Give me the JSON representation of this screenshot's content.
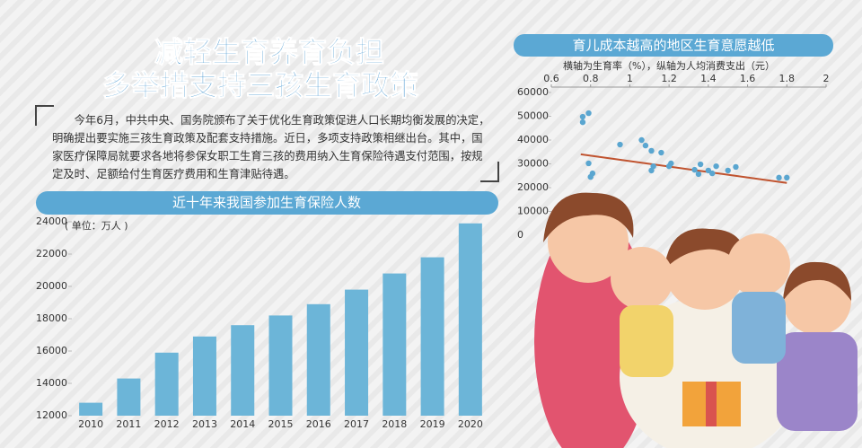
{
  "header": {
    "title_lines": [
      "减轻生育养育负担",
      "多举措支持三孩生育政策"
    ],
    "body": "今年6月，中共中央、国务院颁布了关于优化生育政策促进人口长期均衡发展的决定，明确提出要实施三孩生育政策及配套支持措施。近日，多项支持政策相继出台。其中，国家医疗保障局就要求各地将参保女职工生育三孩的费用纳入生育保险待遇支付范围，按规定及时、足额给付生育医疗费用和生育津贴待遇。"
  },
  "chart_data": [
    {
      "type": "bar",
      "title": "近十年来我国参加生育保险人数",
      "unit": "( 单位：万人 )",
      "categories": [
        "2010",
        "2011",
        "2012",
        "2013",
        "2014",
        "2015",
        "2016",
        "2017",
        "2018",
        "2019",
        "2020"
      ],
      "values": [
        12800,
        14300,
        15900,
        16900,
        17600,
        18200,
        18900,
        19800,
        20800,
        21800,
        23900
      ],
      "color": "#6cb5d8",
      "ylim": [
        12000,
        24000
      ],
      "yticks": [
        12000,
        14000,
        16000,
        18000,
        20000,
        22000,
        24000
      ]
    },
    {
      "type": "scatter",
      "title": "育儿成本越高的地区生育意愿越低",
      "subtitle": "横轴为生育率（%），纵轴为人均消费支出（元）",
      "x": [
        0.76,
        0.79,
        0.76,
        0.79,
        0.81,
        0.8,
        0.95,
        1.06,
        1.08,
        1.11,
        1.12,
        1.11,
        1.16,
        1.2,
        1.21,
        1.33,
        1.35,
        1.36,
        1.4,
        1.42,
        1.44,
        1.5,
        1.54,
        1.76,
        1.8
      ],
      "values": [
        49800,
        51300,
        47500,
        30200,
        26000,
        24500,
        38100,
        40000,
        37700,
        35500,
        29000,
        27200,
        34700,
        29000,
        30200,
        27500,
        25700,
        29800,
        27200,
        26000,
        29000,
        27200,
        28700,
        24200,
        24200
      ],
      "color": "#5aa6d0",
      "trendline": {
        "x": [
          0.75,
          1.8
        ],
        "values": [
          34000,
          22000
        ],
        "color": "#c0532f"
      },
      "xlim": [
        0.6,
        2
      ],
      "xticks": [
        0.6,
        0.8,
        1,
        1.2,
        1.4,
        1.6,
        1.8,
        2
      ],
      "ylim": [
        0,
        60000
      ],
      "yticks": [
        0,
        10000,
        20000,
        30000,
        40000,
        50000,
        60000
      ]
    }
  ]
}
